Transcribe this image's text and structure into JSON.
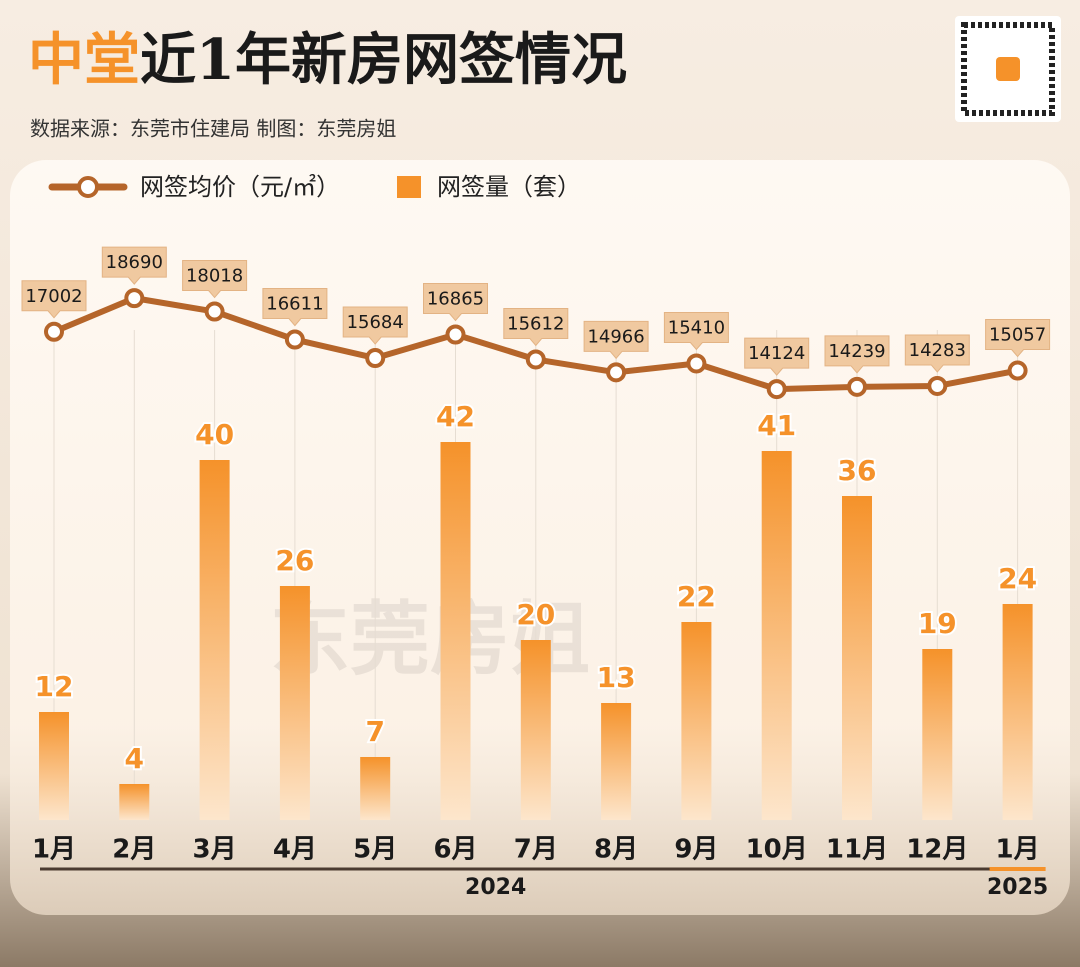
{
  "chart_data": {
    "type": "bar_line",
    "title_highlight": "中堂",
    "title": "近1年新房网签情况",
    "subtitle": "数据来源：东莞市住建局 制图：东莞房姐",
    "watermark": "东莞房姐",
    "categories": [
      "1月",
      "2月",
      "3月",
      "4月",
      "5月",
      "6月",
      "7月",
      "8月",
      "9月",
      "10月",
      "11月",
      "12月",
      "1月"
    ],
    "group_labels": [
      "2024",
      "2025"
    ],
    "series": [
      {
        "name": "网签均价（元/㎡）",
        "type": "line",
        "axis": "y2",
        "color": "#b5652a",
        "values": [
          17002,
          18690,
          18018,
          16611,
          15684,
          16865,
          15612,
          14966,
          15410,
          14124,
          14239,
          14283,
          15057
        ]
      },
      {
        "name": "网签量（套）",
        "type": "bar",
        "color": "#f5922a",
        "values": [
          12,
          4,
          40,
          26,
          7,
          42,
          20,
          13,
          22,
          41,
          36,
          19,
          24
        ]
      }
    ],
    "ylim": [
      0,
      60
    ],
    "y2lim": [
      -7500,
      19600
    ]
  }
}
